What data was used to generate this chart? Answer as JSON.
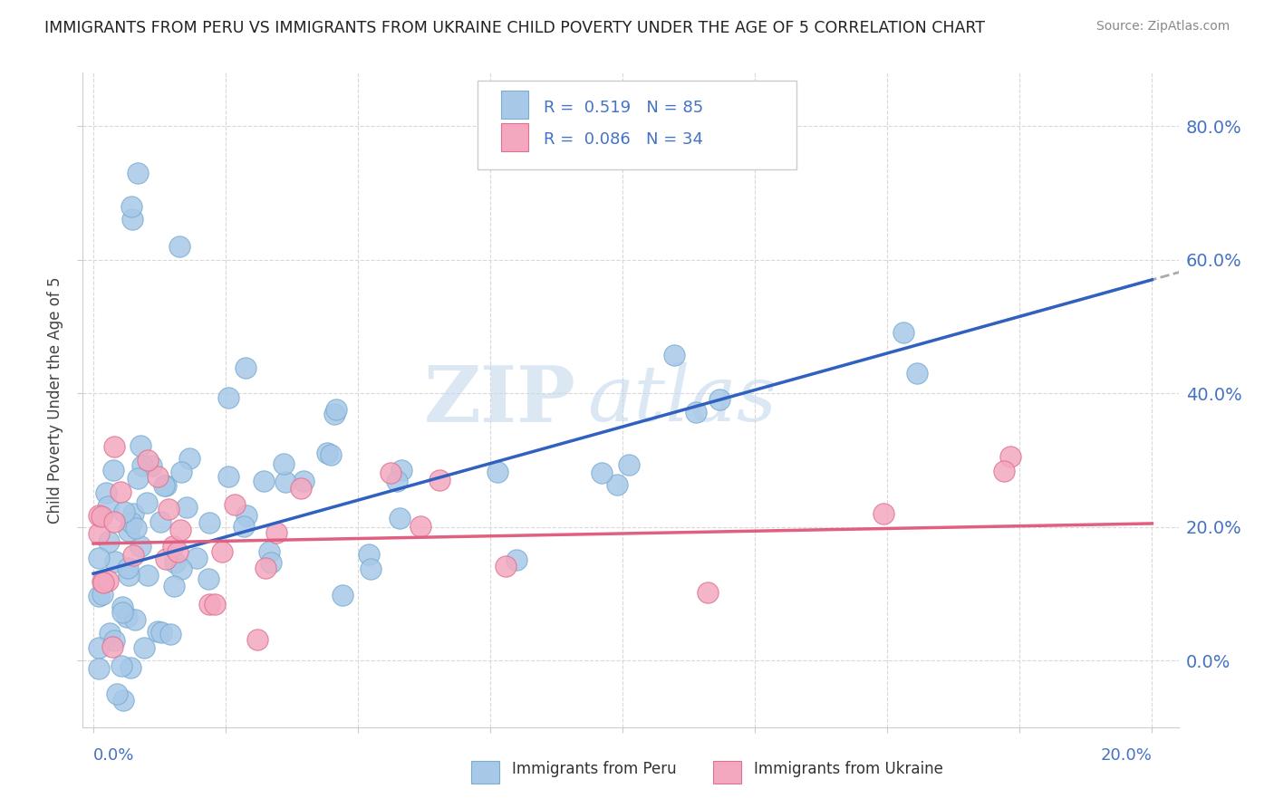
{
  "title": "IMMIGRANTS FROM PERU VS IMMIGRANTS FROM UKRAINE CHILD POVERTY UNDER THE AGE OF 5 CORRELATION CHART",
  "source": "Source: ZipAtlas.com",
  "ylabel": "Child Poverty Under the Age of 5",
  "watermark_zip": "ZIP",
  "watermark_atlas": "atlas",
  "peru_color": "#a8c8e8",
  "peru_edge_color": "#7aadd0",
  "ukraine_color": "#f4a8bf",
  "ukraine_edge_color": "#e07090",
  "trend_peru_color": "#3060c0",
  "trend_ukraine_color": "#e06080",
  "trend_gray_color": "#aaaaaa",
  "background_color": "#ffffff",
  "grid_color": "#d8d8d8",
  "ytick_color": "#4472c4",
  "legend_peru_text": "R =  0.519   N = 85",
  "legend_ukraine_text": "R =  0.086   N = 34",
  "bottom_label_peru": "Immigrants from Peru",
  "bottom_label_ukraine": "Immigrants from Ukraine",
  "peru_trend_x0": 0.0,
  "peru_trend_y0": 0.13,
  "peru_trend_x1": 0.2,
  "peru_trend_y1": 0.57,
  "ukraine_trend_x0": 0.0,
  "ukraine_trend_y0": 0.175,
  "ukraine_trend_x1": 0.2,
  "ukraine_trend_y1": 0.205,
  "xlim_min": -0.002,
  "xlim_max": 0.205,
  "ylim_min": -0.1,
  "ylim_max": 0.88
}
